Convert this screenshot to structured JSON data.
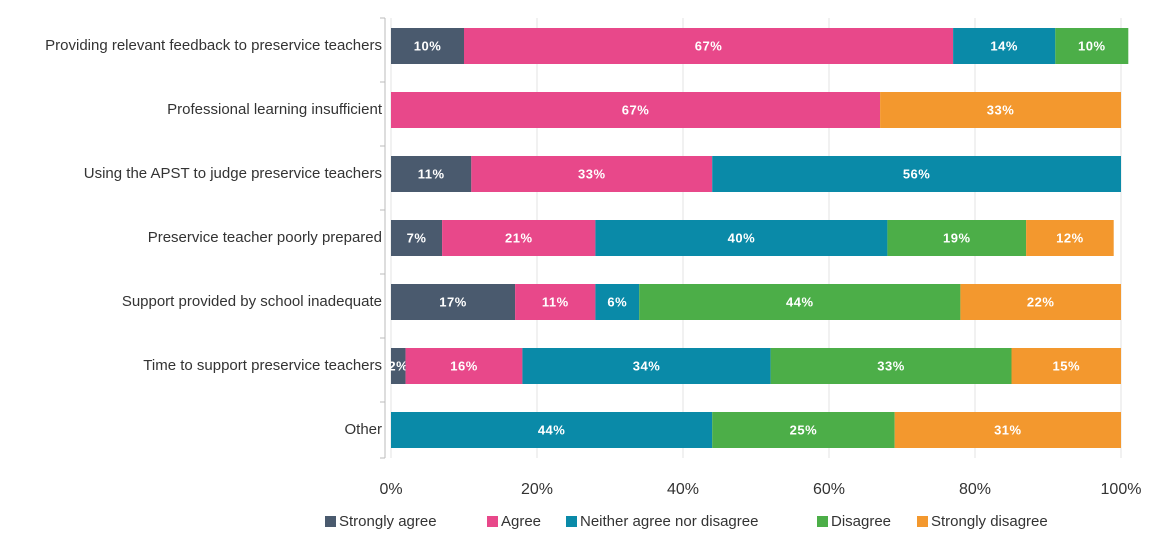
{
  "chart_data": {
    "type": "stacked_bar_horizontal",
    "categories": [
      "Providing relevant feedback to preservice teachers",
      "Professional learning insufficient",
      "Using the APST to judge preservice teachers",
      "Preservice teacher poorly prepared",
      "Support provided by school inadequate",
      "Time to support preservice teachers",
      "Other"
    ],
    "series": [
      {
        "name": "Strongly agree",
        "color": "#4a5a6e",
        "values": [
          10,
          null,
          11,
          7,
          17,
          2,
          null
        ],
        "value_labels": [
          "10%",
          null,
          "11%",
          "7%",
          "17%",
          "2%",
          null
        ]
      },
      {
        "name": "Agree",
        "color": "#e8488a",
        "values": [
          67,
          67,
          33,
          21,
          11,
          16,
          null
        ],
        "value_labels": [
          "67%",
          "67%",
          "33%",
          "21%",
          "11%",
          "16%",
          null
        ]
      },
      {
        "name": "Neither agree nor disagree",
        "color": "#0a8aa8",
        "values": [
          14,
          null,
          56,
          40,
          6,
          34,
          44
        ],
        "value_labels": [
          "14%",
          null,
          "56%",
          "40%",
          "6%",
          "34%",
          "44%"
        ]
      },
      {
        "name": "Disagree",
        "color": "#4cae48",
        "values": [
          10,
          null,
          null,
          19,
          44,
          33,
          25
        ],
        "value_labels": [
          "10%",
          null,
          null,
          "19%",
          "44%",
          "33%",
          "25%"
        ]
      },
      {
        "name": "Strongly disagree",
        "color": "#f3982e",
        "values": [
          null,
          33,
          null,
          12,
          22,
          15,
          31
        ],
        "value_labels": [
          null,
          "33%",
          null,
          "12%",
          "22%",
          "15%",
          "31%"
        ]
      }
    ],
    "xlim": [
      0,
      100
    ],
    "xticks": [
      {
        "value": 0,
        "label": "0%"
      },
      {
        "value": 20,
        "label": "20%"
      },
      {
        "value": 40,
        "label": "40%"
      },
      {
        "value": 60,
        "label": "60%"
      },
      {
        "value": 80,
        "label": "80%"
      },
      {
        "value": 100,
        "label": "100%"
      }
    ],
    "grid": true,
    "legend": "bottom"
  }
}
